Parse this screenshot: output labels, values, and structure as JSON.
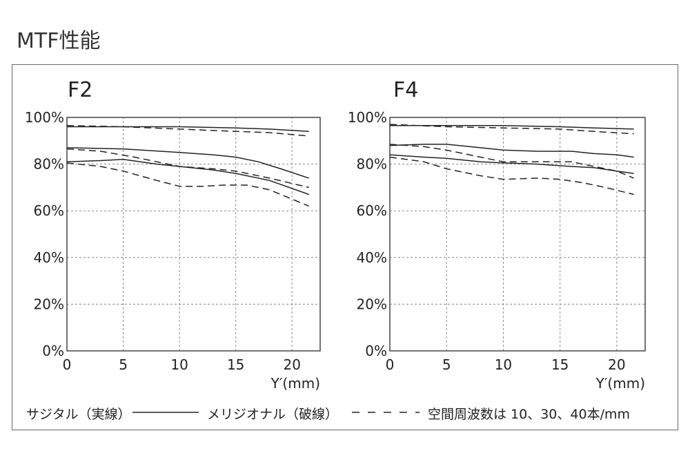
{
  "page_title": "MTF性能",
  "caption": {
    "sagittal": "サジタル（実線）",
    "meridional": "メリジオナル（破線）",
    "frequencies": "空間周波数は 10、30、40本/mm"
  },
  "chart_data": [
    {
      "type": "line",
      "title": "F2",
      "xlabel": "Y′(mm)",
      "ylabel": "",
      "xlim": [
        0,
        22.5
      ],
      "ylim": [
        0,
        100
      ],
      "x_ticks": [
        "0",
        "5",
        "10",
        "15",
        "20"
      ],
      "y_ticks": [
        "0%",
        "20%",
        "40%",
        "60%",
        "80%",
        "100%"
      ],
      "grid": true,
      "series": [
        {
          "style": "solid",
          "x": [
            0,
            5,
            10,
            15,
            18,
            21.5
          ],
          "y": [
            96,
            96,
            96,
            95.5,
            95,
            94
          ]
        },
        {
          "style": "solid",
          "x": [
            0,
            5,
            10,
            13,
            15,
            17,
            19,
            21.5
          ],
          "y": [
            87,
            86.5,
            85,
            84,
            83,
            81,
            78,
            74
          ]
        },
        {
          "style": "solid",
          "x": [
            0,
            3,
            5,
            8,
            10,
            13,
            15,
            18,
            21.5
          ],
          "y": [
            81,
            81.5,
            82,
            80,
            79,
            77.5,
            76,
            73,
            67
          ]
        },
        {
          "style": "dashed",
          "x": [
            0,
            5,
            10,
            15,
            18,
            21.5
          ],
          "y": [
            96.5,
            96,
            95,
            94,
            93.5,
            92
          ]
        },
        {
          "style": "dashed",
          "x": [
            0,
            3,
            6,
            10,
            13,
            15,
            18,
            21.5
          ],
          "y": [
            86.5,
            85.5,
            83,
            79,
            78,
            77,
            74,
            70
          ]
        },
        {
          "style": "dashed",
          "x": [
            0,
            3,
            5,
            8,
            10,
            12,
            14,
            16,
            18,
            20,
            21.5
          ],
          "y": [
            80.5,
            79,
            77,
            73,
            70.5,
            70.5,
            71,
            71,
            69,
            65,
            62
          ]
        }
      ]
    },
    {
      "type": "line",
      "title": "F4",
      "xlabel": "Y′(mm)",
      "ylabel": "",
      "xlim": [
        0,
        22.5
      ],
      "ylim": [
        0,
        100
      ],
      "x_ticks": [
        "0",
        "5",
        "10",
        "15",
        "20"
      ],
      "y_ticks": [
        "0%",
        "20%",
        "40%",
        "60%",
        "80%",
        "100%"
      ],
      "grid": true,
      "series": [
        {
          "style": "solid",
          "x": [
            0,
            5,
            10,
            15,
            18,
            21.5
          ],
          "y": [
            96.5,
            96.5,
            96.5,
            96,
            95.5,
            95
          ]
        },
        {
          "style": "solid",
          "x": [
            0,
            3,
            5,
            8,
            10,
            13,
            16,
            18,
            20,
            21.5
          ],
          "y": [
            88,
            88.5,
            88.5,
            87,
            86,
            85.5,
            85.5,
            84.5,
            84,
            83
          ]
        },
        {
          "style": "solid",
          "x": [
            0,
            3,
            5,
            8,
            10,
            13,
            16,
            18,
            20,
            21.5
          ],
          "y": [
            84,
            83,
            82.5,
            81,
            80.5,
            80,
            79,
            78.5,
            77,
            76
          ]
        },
        {
          "style": "dashed",
          "x": [
            0,
            5,
            10,
            15,
            18,
            21.5
          ],
          "y": [
            97,
            96,
            95.5,
            95,
            94,
            93
          ]
        },
        {
          "style": "dashed",
          "x": [
            0,
            3,
            5,
            8,
            10,
            13,
            16,
            18,
            20,
            21.5
          ],
          "y": [
            88.5,
            87.5,
            86,
            83,
            81,
            81,
            81,
            79,
            77,
            74
          ]
        },
        {
          "style": "dashed",
          "x": [
            0,
            3,
            5,
            8,
            10,
            13,
            15,
            17,
            19,
            21.5
          ],
          "y": [
            83,
            81,
            78,
            75,
            73.5,
            74,
            73.5,
            72,
            70,
            67
          ]
        }
      ]
    }
  ]
}
